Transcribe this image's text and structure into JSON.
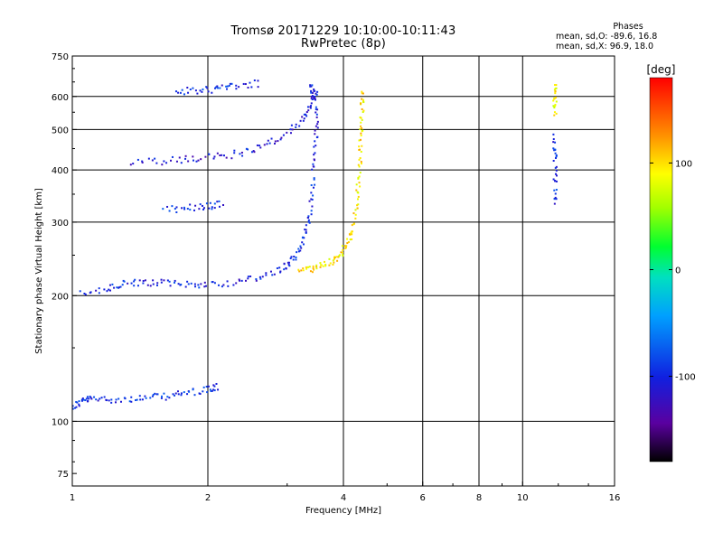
{
  "title": "Tromsø 20171229 10:10:00-10:11:43",
  "subtitle": "RwPretec (8p)",
  "phase_info": {
    "title": "Phases",
    "line1": "mean, sd,O: -89.6, 16.8",
    "line2": "mean, sd,X:  96.9, 18.0"
  },
  "colorbar": {
    "unit_label": "[deg]",
    "ticks": [
      100,
      0,
      -100
    ],
    "range": [
      -180,
      180
    ],
    "colormap": "rainbow (black-purple-blue-cyan-green-yellow-orange-red)"
  },
  "chart_data": {
    "type": "scatter",
    "xlabel": "Frequency [MHz]",
    "ylabel": "Stationary phase Virtual Height [km]",
    "x_scale": "log",
    "y_scale": "log",
    "xlim": [
      1,
      16
    ],
    "ylim": [
      70,
      750
    ],
    "x_ticks": [
      1,
      2,
      4,
      6,
      8,
      10,
      16
    ],
    "y_ticks": [
      75,
      100,
      200,
      300,
      400,
      500,
      600,
      750
    ],
    "x_gridlines": [
      2,
      4,
      6,
      8,
      10
    ],
    "y_gridlines": [
      100,
      200,
      300,
      400,
      500,
      600
    ],
    "trace_groups": [
      {
        "label": "",
        "phase_deg": -95,
        "points": [
          [
            1.0,
            108
          ],
          [
            1.05,
            112
          ],
          [
            1.1,
            113
          ],
          [
            1.2,
            113
          ],
          [
            1.35,
            113
          ],
          [
            1.5,
            114
          ],
          [
            1.65,
            115
          ],
          [
            1.8,
            117
          ],
          [
            2.0,
            119
          ],
          [
            2.1,
            121
          ]
        ]
      },
      {
        "label": "",
        "phase_deg": -100,
        "points": [
          [
            1.05,
            203
          ],
          [
            1.2,
            207
          ],
          [
            1.3,
            213
          ],
          [
            1.45,
            215
          ],
          [
            1.6,
            214
          ],
          [
            1.8,
            213
          ],
          [
            2.0,
            213
          ],
          [
            2.3,
            215
          ],
          [
            2.6,
            221
          ],
          [
            2.9,
            231
          ],
          [
            3.05,
            240
          ],
          [
            3.2,
            260
          ],
          [
            3.3,
            285
          ],
          [
            3.38,
            320
          ],
          [
            3.43,
            380
          ],
          [
            3.46,
            450
          ],
          [
            3.5,
            530
          ],
          [
            3.45,
            600
          ],
          [
            3.38,
            640
          ]
        ]
      },
      {
        "label": "",
        "phase_deg": 97,
        "points": [
          [
            3.2,
            230
          ],
          [
            3.4,
            232
          ],
          [
            3.6,
            237
          ],
          [
            3.8,
            243
          ],
          [
            3.95,
            252
          ],
          [
            4.1,
            268
          ],
          [
            4.2,
            290
          ],
          [
            4.28,
            330
          ],
          [
            4.33,
            380
          ],
          [
            4.36,
            440
          ],
          [
            4.38,
            500
          ],
          [
            4.4,
            560
          ],
          [
            4.42,
            610
          ]
        ]
      },
      {
        "label": "",
        "phase_deg": -110,
        "points": [
          [
            1.35,
            415
          ],
          [
            1.6,
            420
          ],
          [
            1.85,
            425
          ],
          [
            2.1,
            430
          ],
          [
            2.4,
            440
          ],
          [
            2.7,
            460
          ],
          [
            3.0,
            490
          ],
          [
            3.25,
            530
          ],
          [
            3.4,
            580
          ],
          [
            3.48,
            620
          ]
        ]
      },
      {
        "label": "",
        "phase_deg": -95,
        "points": [
          [
            1.7,
            615
          ],
          [
            1.9,
            620
          ],
          [
            2.1,
            625
          ],
          [
            2.3,
            635
          ],
          [
            2.6,
            645
          ]
        ]
      },
      {
        "label": "",
        "phase_deg": -95,
        "points": [
          [
            1.6,
            320
          ],
          [
            1.8,
            325
          ],
          [
            2.0,
            328
          ],
          [
            2.15,
            330
          ]
        ]
      },
      {
        "label": "",
        "phase_deg": -95,
        "points": [
          [
            11.8,
            330
          ],
          [
            11.8,
            380
          ],
          [
            11.8,
            430
          ],
          [
            11.8,
            480
          ]
        ]
      },
      {
        "label": "",
        "phase_deg": 90,
        "points": [
          [
            11.8,
            540
          ],
          [
            11.8,
            600
          ],
          [
            11.8,
            640
          ]
        ]
      }
    ]
  }
}
